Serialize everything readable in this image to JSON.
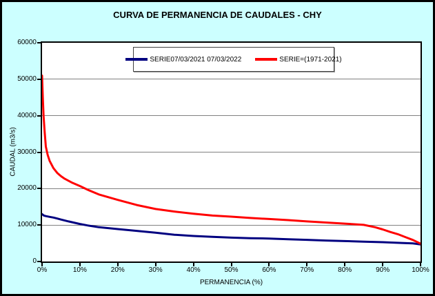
{
  "title": "CURVA DE PERMANENCIA DE CAUDALES - CHY",
  "colors": {
    "background": "#CCFFFF",
    "plot_background": "#FFFFFF",
    "gridline": "#808080",
    "axis": "#000000",
    "series_blue": "#000080",
    "series_red": "#FF0000"
  },
  "legend": {
    "entries": [
      {
        "label": "SERIE07/03/2021 07/03/2022",
        "color": "#000080"
      },
      {
        "label": "SERIE=(1971-2021)",
        "color": "#FF0000"
      }
    ]
  },
  "chart_data": {
    "type": "line",
    "title": "CURVA DE PERMANENCIA DE CAUDALES - CHY",
    "xlabel": "PERMANENCIA (%)",
    "ylabel": "CAUDAL (m3/s)",
    "xlim": [
      0,
      100
    ],
    "ylim": [
      0,
      60000
    ],
    "grid": "horizontal",
    "legend_position": "top-center",
    "x_tick_labels": [
      "0%",
      "10%",
      "20%",
      "30%",
      "40%",
      "50%",
      "60%",
      "70%",
      "80%",
      "90%",
      "100%"
    ],
    "x_tick_values": [
      0,
      10,
      20,
      30,
      40,
      50,
      60,
      70,
      80,
      90,
      100
    ],
    "y_tick_labels": [
      "0",
      "10000",
      "20000",
      "30000",
      "40000",
      "50000",
      "60000"
    ],
    "y_tick_values": [
      0,
      10000,
      20000,
      30000,
      40000,
      50000,
      60000
    ],
    "y_gridline_values": [
      10000,
      20000,
      30000,
      40000,
      50000
    ],
    "series": [
      {
        "name": "SERIE07/03/2021 07/03/2022",
        "color": "#000080",
        "points": [
          [
            0,
            13000
          ],
          [
            0.5,
            12600
          ],
          [
            1,
            12450
          ],
          [
            2,
            12250
          ],
          [
            3,
            12050
          ],
          [
            4,
            11800
          ],
          [
            5,
            11500
          ],
          [
            7,
            11000
          ],
          [
            10,
            10300
          ],
          [
            12,
            9900
          ],
          [
            15,
            9400
          ],
          [
            20,
            8900
          ],
          [
            25,
            8400
          ],
          [
            30,
            7900
          ],
          [
            35,
            7350
          ],
          [
            40,
            7000
          ],
          [
            45,
            6750
          ],
          [
            50,
            6550
          ],
          [
            55,
            6400
          ],
          [
            60,
            6300
          ],
          [
            65,
            6100
          ],
          [
            70,
            5950
          ],
          [
            75,
            5750
          ],
          [
            80,
            5600
          ],
          [
            85,
            5450
          ],
          [
            90,
            5300
          ],
          [
            95,
            5100
          ],
          [
            98,
            4950
          ],
          [
            100,
            4700
          ]
        ]
      },
      {
        "name": "SERIE=(1971-2021)",
        "color": "#FF0000",
        "points": [
          [
            0,
            51000
          ],
          [
            0.2,
            45000
          ],
          [
            0.4,
            40000
          ],
          [
            0.7,
            35500
          ],
          [
            1,
            31500
          ],
          [
            1.5,
            29200
          ],
          [
            2,
            27600
          ],
          [
            3,
            25600
          ],
          [
            4,
            24300
          ],
          [
            5,
            23400
          ],
          [
            6,
            22700
          ],
          [
            8,
            21600
          ],
          [
            10,
            20700
          ],
          [
            12,
            19700
          ],
          [
            15,
            18400
          ],
          [
            20,
            16900
          ],
          [
            25,
            15500
          ],
          [
            30,
            14400
          ],
          [
            35,
            13700
          ],
          [
            40,
            13100
          ],
          [
            45,
            12600
          ],
          [
            50,
            12300
          ],
          [
            55,
            11950
          ],
          [
            60,
            11650
          ],
          [
            65,
            11350
          ],
          [
            70,
            11000
          ],
          [
            75,
            10700
          ],
          [
            80,
            10400
          ],
          [
            85,
            10050
          ],
          [
            88,
            9400
          ],
          [
            90,
            8800
          ],
          [
            92,
            8100
          ],
          [
            94,
            7500
          ],
          [
            96,
            6700
          ],
          [
            98,
            5900
          ],
          [
            99,
            5400
          ],
          [
            100,
            4900
          ]
        ]
      }
    ]
  }
}
